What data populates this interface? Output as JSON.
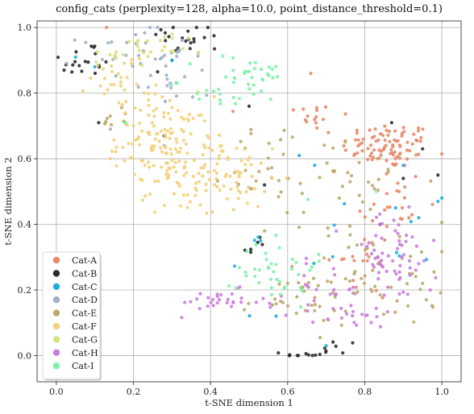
{
  "chart_data": {
    "type": "scatter",
    "title": "config_cats (perplexity=128, alpha=10.0, point_distance_threshold=0.1)",
    "xlabel": "t-SNE dimension 1",
    "ylabel": "t-SNE dimension 2",
    "xlim": [
      -0.05,
      1.05
    ],
    "ylim": [
      -0.08,
      1.02
    ],
    "xticks": [
      "0.0",
      "0.2",
      "0.4",
      "0.6",
      "0.8",
      "1.0"
    ],
    "yticks": [
      "0.0",
      "0.2",
      "0.4",
      "0.6",
      "0.8",
      "1.0"
    ],
    "grid": true,
    "legend_position": "lower-left",
    "series": [
      {
        "name": "Cat-A",
        "color": "#E8896A",
        "clusters": [
          [
            0.86,
            0.64,
            0.06,
            0.035,
            90
          ],
          [
            0.66,
            0.73,
            0.05,
            0.03,
            15
          ],
          [
            0.86,
            0.45,
            0.05,
            0.07,
            25
          ],
          [
            0.8,
            0.28,
            0.06,
            0.06,
            15
          ]
        ],
        "points": [
          [
            0.13,
            1.0
          ],
          [
            0.66,
            0.86
          ]
        ]
      },
      {
        "name": "Cat-B",
        "color": "#2B2B2B",
        "clusters": [
          [
            0.08,
            0.9,
            0.035,
            0.03,
            18
          ],
          [
            0.34,
            0.97,
            0.05,
            0.025,
            22
          ],
          [
            0.65,
            0.0,
            0.03,
            0.008,
            12
          ],
          [
            0.72,
            0.02,
            0.03,
            0.015,
            6
          ],
          [
            0.52,
            0.33,
            0.02,
            0.02,
            6
          ]
        ],
        "points": [
          [
            0.02,
            0.87
          ],
          [
            0.11,
            0.71
          ],
          [
            0.28,
            0.67
          ],
          [
            0.54,
            0.52
          ],
          [
            0.5,
            0.76
          ],
          [
            0.87,
            0.71
          ],
          [
            0.9,
            0.54
          ],
          [
            0.99,
            0.55
          ],
          [
            0.95,
            0.63
          ],
          [
            0.84,
            0.4
          ],
          [
            0.3,
            0.9
          ]
        ]
      },
      {
        "name": "Cat-C",
        "color": "#1FADE0",
        "clusters": [
          [
            0.72,
            0.33,
            0.14,
            0.09,
            12
          ]
        ],
        "points": [
          [
            0.05,
            0.91
          ],
          [
            0.1,
            0.88
          ],
          [
            0.3,
            0.9
          ],
          [
            0.63,
            0.61
          ],
          [
            0.67,
            0.58
          ],
          [
            0.88,
            0.45
          ],
          [
            0.94,
            0.42
          ],
          [
            1.0,
            0.48
          ],
          [
            0.99,
            0.47
          ],
          [
            0.53,
            0.35
          ],
          [
            0.57,
            0.12
          ],
          [
            0.7,
            0.03
          ],
          [
            0.9,
            0.58
          ]
        ]
      },
      {
        "name": "Cat-D",
        "color": "#9FB0C7",
        "clusters": [
          [
            0.2,
            0.92,
            0.07,
            0.035,
            35
          ],
          [
            0.3,
            0.83,
            0.05,
            0.04,
            15
          ]
        ],
        "points": [
          [
            0.14,
            0.69
          ],
          [
            0.28,
            0.64
          ]
        ]
      },
      {
        "name": "Cat-E",
        "color": "#BDA96C",
        "clusters": [
          [
            0.72,
            0.53,
            0.12,
            0.06,
            40
          ],
          [
            0.84,
            0.25,
            0.09,
            0.08,
            55
          ],
          [
            0.62,
            0.17,
            0.07,
            0.04,
            30
          ],
          [
            0.55,
            0.62,
            0.06,
            0.05,
            15
          ],
          [
            0.14,
            0.72,
            0.025,
            0.02,
            8
          ]
        ],
        "points": [
          [
            0.54,
            0.38
          ],
          [
            0.6,
            0.22
          ],
          [
            0.95,
            0.22
          ]
        ]
      },
      {
        "name": "Cat-F",
        "color": "#F2D27A",
        "clusters": [
          [
            0.28,
            0.65,
            0.06,
            0.07,
            120
          ],
          [
            0.38,
            0.55,
            0.06,
            0.06,
            70
          ],
          [
            0.17,
            0.85,
            0.04,
            0.05,
            30
          ],
          [
            0.48,
            0.55,
            0.04,
            0.05,
            25
          ]
        ],
        "points": [
          [
            0.27,
            0.96
          ],
          [
            0.54,
            0.5
          ]
        ]
      },
      {
        "name": "Cat-G",
        "color": "#D7E27B",
        "clusters": [
          [
            0.22,
            0.92,
            0.06,
            0.03,
            20
          ],
          [
            0.15,
            0.9,
            0.02,
            0.03,
            6
          ]
        ],
        "points": [
          [
            0.3,
            0.98
          ],
          [
            0.2,
            0.7
          ]
        ]
      },
      {
        "name": "Cat-H",
        "color": "#C97DDD",
        "clusters": [
          [
            0.87,
            0.3,
            0.06,
            0.07,
            60
          ],
          [
            0.7,
            0.2,
            0.05,
            0.04,
            25
          ],
          [
            0.42,
            0.16,
            0.06,
            0.02,
            30
          ],
          [
            0.79,
            0.12,
            0.04,
            0.02,
            15
          ]
        ],
        "points": [
          [
            0.94,
            0.28
          ],
          [
            0.97,
            0.2
          ]
        ]
      },
      {
        "name": "Cat-I",
        "color": "#7EF2A7",
        "clusters": [
          [
            0.5,
            0.86,
            0.06,
            0.03,
            30
          ],
          [
            0.41,
            0.8,
            0.06,
            0.025,
            15
          ],
          [
            0.57,
            0.27,
            0.05,
            0.06,
            40
          ]
        ],
        "points": [
          [
            0.18,
            0.71
          ],
          [
            0.83,
            0.5
          ]
        ]
      }
    ]
  }
}
